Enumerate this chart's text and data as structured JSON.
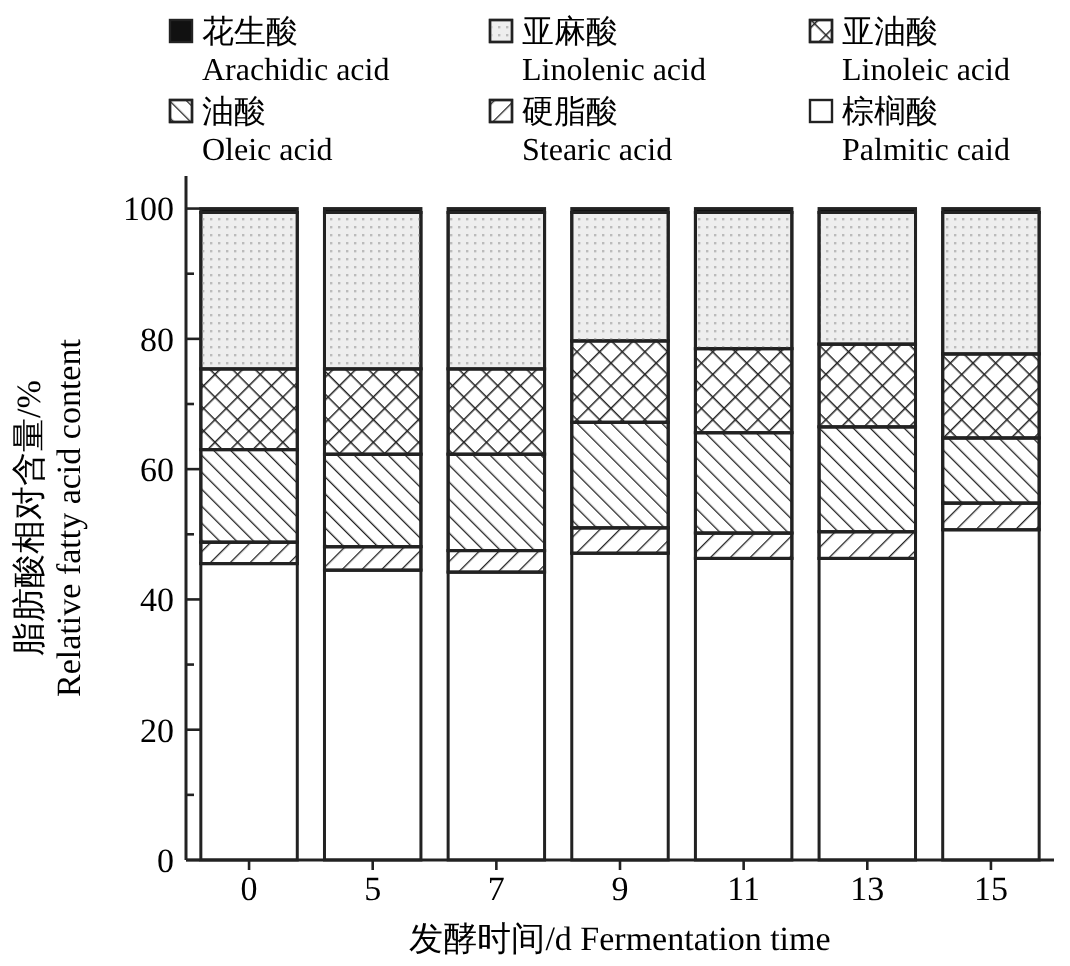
{
  "chart_data": {
    "type": "bar",
    "stacked": true,
    "categories": [
      "0",
      "5",
      "7",
      "9",
      "11",
      "13",
      "15"
    ],
    "xlabel": "发酵时间/d  Fermentation time",
    "ylabel": "脂肪酸相对含量/%\nRelative fatty acid content",
    "ylim": [
      0,
      105
    ],
    "yticks": [
      0,
      {
        "value": 10,
        "label": null
      },
      20,
      {
        "value": 30,
        "label": null
      },
      40,
      {
        "value": 50,
        "label": null
      },
      60,
      {
        "value": 70,
        "label": null
      },
      80,
      {
        "value": 90,
        "label": null
      },
      100
    ],
    "legend": "top",
    "series": [
      {
        "name": "棕榈酸\nPalmitic caid",
        "color": "#ffffff",
        "values": [
          45.5,
          44.5,
          44.2,
          47.1,
          46.3,
          46.3,
          50.7
        ]
      },
      {
        "name": "硬脂酸\nStearic acid",
        "color": "#ffffff",
        "values": [
          3.3,
          3.6,
          3.3,
          3.9,
          3.9,
          4.1,
          4.1
        ]
      },
      {
        "name": "油酸\nOleic acid",
        "color": "#ffffff",
        "values": [
          14.2,
          14.2,
          14.8,
          16.2,
          15.4,
          16.1,
          10.0
        ]
      },
      {
        "name": "亚油酸\nLinoleic acid",
        "color": "#ffffff",
        "values": [
          12.4,
          13.1,
          13.1,
          12.5,
          12.9,
          12.7,
          12.9
        ]
      },
      {
        "name": "亚麻酸\nLinolenic acid",
        "color": "#eeeeee",
        "values": [
          24.0,
          24.0,
          24.0,
          19.7,
          20.9,
          20.2,
          21.7
        ]
      },
      {
        "name": "花生酸\nArachidic acid",
        "color": "#111111",
        "values": [
          0.6,
          0.6,
          0.6,
          0.6,
          0.6,
          0.6,
          0.6
        ]
      }
    ]
  }
}
